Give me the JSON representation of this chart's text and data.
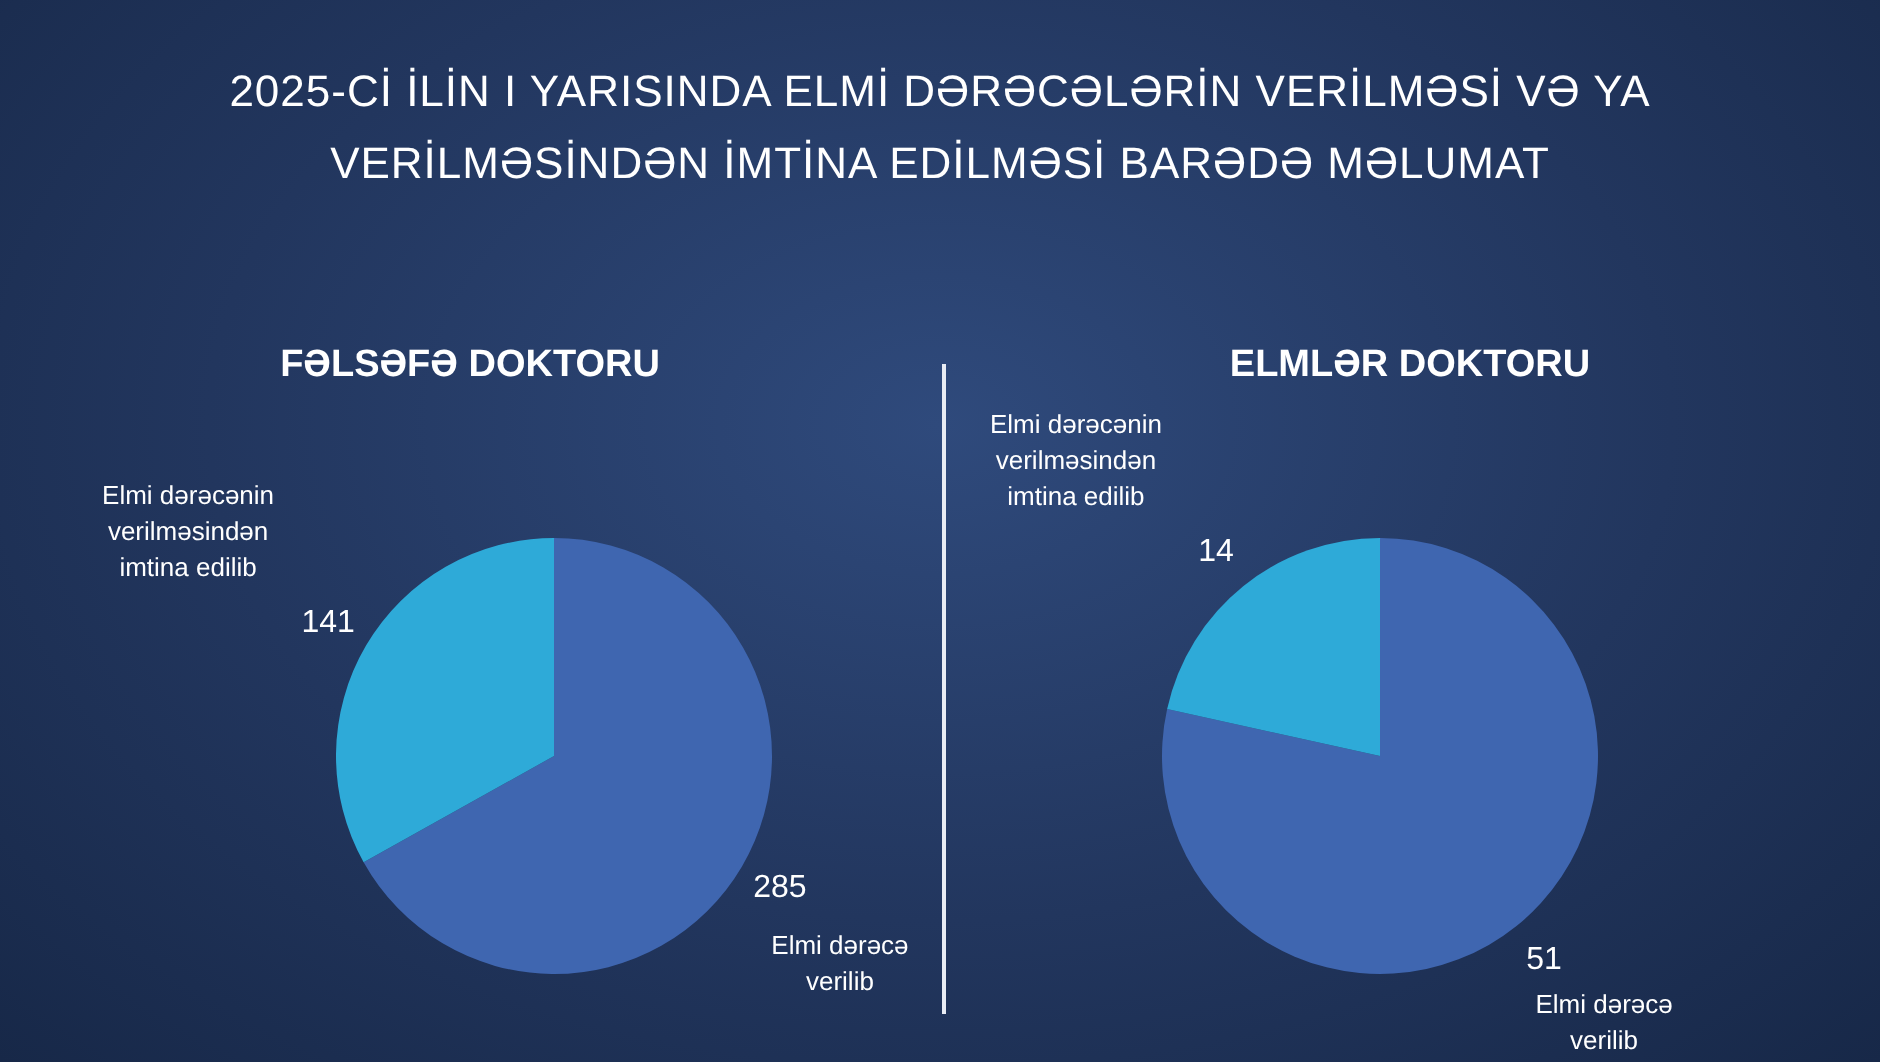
{
  "chart_data": [
    {
      "type": "other",
      "title": "2025-Cİ İLİN I YARISINDA ELMİ DƏRƏCƏLƏRİN VERİLMƏSİ VƏ YA VERİLMƏSİNDƏN İMTİNA EDİLMƏSİ BARƏDƏ MƏLUMAT"
    },
    {
      "type": "pie",
      "title": "FƏLSƏFƏ DOKTORU",
      "categories": [
        "Elmi dərəcə verilib",
        "Elmi dərəcənin verilməsindən imtina edilib"
      ],
      "values": [
        285,
        141
      ],
      "colors": [
        "#3f66b0",
        "#2eaad8"
      ],
      "data_labels": true
    },
    {
      "type": "pie",
      "title": "ELMLƏR DOKTORU",
      "categories": [
        "Elmi dərəcə verilib",
        "Elmi dərəcənin verilməsindən imtina edilib"
      ],
      "values": [
        51,
        14
      ],
      "colors": [
        "#3f66b0",
        "#2eaad8"
      ],
      "data_labels": true
    }
  ]
}
